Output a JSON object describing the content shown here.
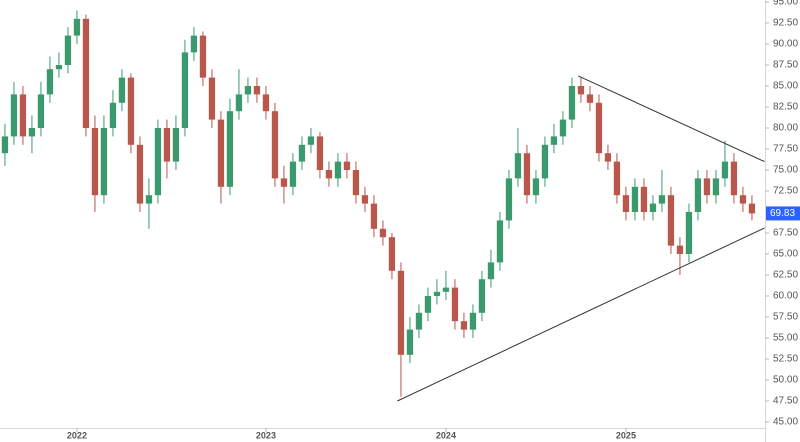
{
  "chart_data": {
    "type": "candlestick",
    "categories": [
      null,
      null,
      null,
      null,
      null,
      null,
      null,
      null,
      "2022",
      null,
      null,
      null,
      null,
      null,
      null,
      null,
      null,
      null,
      null,
      null,
      null,
      null,
      null,
      null,
      null,
      null,
      null,
      null,
      null,
      "2023",
      null,
      null,
      null,
      null,
      null,
      null,
      null,
      null,
      null,
      null,
      null,
      null,
      null,
      null,
      null,
      null,
      null,
      null,
      null,
      "2024",
      null,
      null,
      null,
      null,
      null,
      null,
      null,
      null,
      null,
      null,
      null,
      null,
      null,
      null,
      null,
      null,
      null,
      null,
      null,
      "2025",
      null,
      null,
      null,
      null,
      null,
      null,
      null,
      null,
      null,
      null,
      null,
      null,
      null,
      null
    ],
    "opens": [
      77,
      79,
      84,
      79,
      80,
      84,
      87,
      87.5,
      91,
      93,
      80,
      72,
      80,
      83,
      86,
      78,
      71,
      72,
      80,
      76,
      80,
      89,
      91,
      86,
      81,
      73,
      82,
      84,
      85,
      84,
      82,
      74,
      73,
      76,
      78,
      79,
      75,
      74,
      76,
      75,
      72,
      71,
      68,
      67,
      63,
      53,
      56,
      58,
      60,
      60.5,
      61,
      57,
      56,
      58,
      62,
      64,
      69,
      74,
      77,
      72,
      74,
      78,
      79,
      81,
      85,
      84,
      83,
      77,
      76,
      72,
      70,
      73,
      70,
      71,
      72,
      66,
      65,
      70,
      74,
      72,
      74,
      76,
      72,
      71
    ],
    "highs": [
      80.5,
      85.5,
      85,
      81.5,
      85.5,
      88.5,
      89,
      92,
      94,
      93.5,
      81.5,
      81.5,
      84.5,
      87,
      86.5,
      79,
      74,
      81,
      81,
      81.5,
      90.5,
      92,
      91.5,
      87,
      82,
      83.5,
      87,
      86,
      86,
      85,
      83,
      75.5,
      77,
      79,
      80,
      79.5,
      76,
      77,
      77,
      76,
      73,
      72,
      69,
      67.5,
      64,
      57.5,
      59,
      61,
      62,
      63,
      62,
      58,
      59,
      63,
      65.5,
      70,
      75,
      80,
      78,
      75,
      79,
      80.5,
      82,
      86,
      86,
      85,
      84,
      78,
      77,
      73,
      74,
      74,
      72,
      75,
      73,
      67,
      71,
      75,
      75,
      75,
      78.5,
      77,
      73,
      72
    ],
    "lows": [
      75.5,
      78,
      78,
      77,
      79,
      83,
      86,
      86.5,
      90,
      79,
      70,
      71,
      79,
      82,
      77,
      70,
      68,
      71,
      74,
      75,
      79,
      88,
      85,
      80,
      71,
      72,
      81,
      83,
      83,
      81,
      73,
      71,
      72,
      75,
      77,
      74,
      73,
      73,
      74,
      71,
      70,
      67,
      66,
      62,
      48,
      52,
      55,
      57,
      59,
      59.5,
      56,
      55,
      55,
      57,
      61,
      63,
      68,
      73,
      71,
      71,
      73,
      77,
      78,
      80,
      83,
      82,
      76,
      75,
      71,
      69,
      69,
      69,
      69,
      70,
      65,
      62.5,
      64,
      69,
      71,
      71,
      73,
      71,
      70,
      69
    ],
    "closes": [
      79,
      84,
      79,
      80,
      84,
      87,
      87.5,
      91,
      93,
      80,
      72,
      80,
      83,
      86,
      78,
      71,
      72,
      80,
      76,
      80,
      89,
      91,
      86,
      81,
      73,
      82,
      84,
      85,
      84,
      82,
      74,
      73,
      76,
      78,
      79,
      75,
      74,
      76,
      75,
      72,
      71,
      68,
      67,
      63,
      53,
      56,
      58,
      60,
      60.5,
      61,
      57,
      56,
      58,
      62,
      64,
      69,
      74,
      77,
      72,
      74,
      78,
      79,
      81,
      85,
      84,
      83,
      77,
      76,
      72,
      70,
      73,
      70,
      71,
      72,
      66,
      65,
      70,
      74,
      72,
      74,
      76,
      72,
      71,
      69.83
    ],
    "up_color": "#3a9a6e",
    "down_color": "#b8574c",
    "xlim": [
      -0.55,
      84.45
    ],
    "ylim": [
      45,
      95
    ],
    "yticks": [
      {
        "value": 45,
        "label": "45.00"
      },
      {
        "value": 47.5,
        "label": "47.50"
      },
      {
        "value": 50,
        "label": "50.00"
      },
      {
        "value": 52.5,
        "label": "52.50"
      },
      {
        "value": 55,
        "label": "55.00"
      },
      {
        "value": 57.5,
        "label": "57.50"
      },
      {
        "value": 60,
        "label": "60.00"
      },
      {
        "value": 62.5,
        "label": "62.50"
      },
      {
        "value": 65,
        "label": "65.00"
      },
      {
        "value": 67.5,
        "label": "67.50"
      },
      {
        "value": 70,
        "label": "70.00"
      },
      {
        "value": 72.5,
        "label": "72.50"
      },
      {
        "value": 75,
        "label": "75.00"
      },
      {
        "value": 77.5,
        "label": "77.50"
      },
      {
        "value": 80,
        "label": "80.00"
      },
      {
        "value": 82.5,
        "label": "82.50"
      },
      {
        "value": 85,
        "label": "85.00"
      },
      {
        "value": 87.5,
        "label": "87.50"
      },
      {
        "value": 90,
        "label": "90.00"
      },
      {
        "value": 92.5,
        "label": "92.50"
      },
      {
        "value": 95,
        "label": "95.00"
      }
    ],
    "last_price": 69.83,
    "last_price_color": "#2962ff",
    "trendlines": [
      {
        "x": [
          63.7,
          84.4
        ],
        "y": [
          86.2,
          76
        ]
      },
      {
        "x": [
          43.6,
          84.4
        ],
        "y": [
          47.5,
          68.1
        ]
      }
    ]
  }
}
